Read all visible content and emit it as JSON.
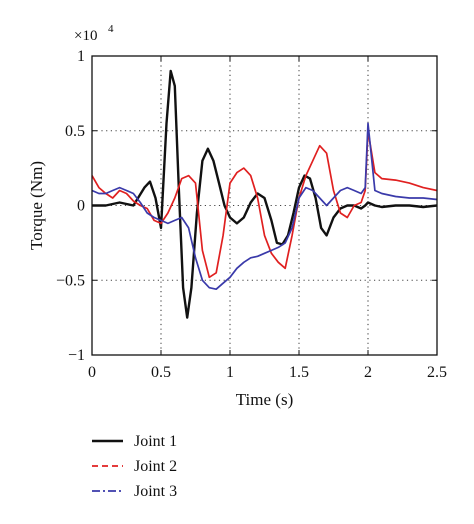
{
  "chart_data": {
    "type": "line",
    "xlabel": "Time (s)",
    "ylabel": "Torque (Nm)",
    "y_multiplier": {
      "base": "×10",
      "exponent": "4"
    },
    "xlim": [
      0,
      2.5
    ],
    "ylim": [
      -1,
      1
    ],
    "x_ticks": [
      0,
      0.5,
      1,
      1.5,
      2,
      2.5
    ],
    "x_tick_labels": [
      "0",
      "0.5",
      "1",
      "1.5",
      "2",
      "2.5"
    ],
    "y_ticks": [
      1,
      0.5,
      0,
      -0.5,
      -1
    ],
    "y_tick_labels": [
      "1",
      "0.5",
      "0",
      "−0.5",
      "−1"
    ],
    "grid": true,
    "legend_position": "bottom-left-outside",
    "series": [
      {
        "name": "Joint 1",
        "color": "#111111",
        "dash": "solid",
        "x": [
          0,
          0.1,
          0.2,
          0.3,
          0.38,
          0.42,
          0.46,
          0.5,
          0.54,
          0.57,
          0.6,
          0.63,
          0.66,
          0.69,
          0.72,
          0.76,
          0.8,
          0.84,
          0.88,
          0.92,
          0.96,
          1.0,
          1.05,
          1.1,
          1.15,
          1.2,
          1.25,
          1.3,
          1.34,
          1.38,
          1.42,
          1.46,
          1.5,
          1.54,
          1.58,
          1.62,
          1.66,
          1.7,
          1.75,
          1.8,
          1.85,
          1.9,
          1.95,
          1.98,
          2.0,
          2.05,
          2.1,
          2.2,
          2.3,
          2.4,
          2.5
        ],
        "y": [
          0.0,
          0.0,
          0.02,
          0.0,
          0.12,
          0.16,
          0.05,
          -0.15,
          0.55,
          0.9,
          0.8,
          0.1,
          -0.55,
          -0.75,
          -0.55,
          -0.05,
          0.3,
          0.38,
          0.3,
          0.15,
          0.0,
          -0.08,
          -0.12,
          -0.08,
          0.02,
          0.08,
          0.05,
          -0.1,
          -0.25,
          -0.26,
          -0.2,
          -0.05,
          0.12,
          0.2,
          0.18,
          0.05,
          -0.15,
          -0.2,
          -0.08,
          -0.02,
          0.0,
          0.0,
          -0.02,
          0.0,
          0.02,
          0.0,
          -0.01,
          0.0,
          0.0,
          -0.01,
          0.0
        ]
      },
      {
        "name": "Joint 2",
        "color": "#e02020",
        "dash": "6 4",
        "x": [
          0,
          0.05,
          0.1,
          0.15,
          0.2,
          0.25,
          0.3,
          0.35,
          0.4,
          0.45,
          0.5,
          0.55,
          0.6,
          0.65,
          0.7,
          0.75,
          0.8,
          0.85,
          0.9,
          0.95,
          1.0,
          1.05,
          1.1,
          1.15,
          1.2,
          1.25,
          1.3,
          1.35,
          1.4,
          1.45,
          1.5,
          1.55,
          1.6,
          1.65,
          1.7,
          1.75,
          1.8,
          1.85,
          1.9,
          1.95,
          1.98,
          2.0,
          2.05,
          2.1,
          2.2,
          2.3,
          2.4,
          2.5
        ],
        "y": [
          0.2,
          0.12,
          0.08,
          0.05,
          0.1,
          0.08,
          0.03,
          0.0,
          -0.02,
          -0.1,
          -0.12,
          -0.05,
          0.05,
          0.18,
          0.2,
          0.15,
          -0.3,
          -0.48,
          -0.45,
          -0.2,
          0.15,
          0.22,
          0.25,
          0.2,
          0.05,
          -0.2,
          -0.32,
          -0.38,
          -0.42,
          -0.2,
          0.05,
          0.2,
          0.3,
          0.4,
          0.35,
          0.1,
          -0.05,
          -0.08,
          0.0,
          0.02,
          0.1,
          0.5,
          0.22,
          0.18,
          0.17,
          0.15,
          0.12,
          0.1
        ]
      },
      {
        "name": "Joint 3",
        "color": "#3a3aaa",
        "dash": "8 3 2 3",
        "x": [
          0,
          0.05,
          0.1,
          0.15,
          0.2,
          0.25,
          0.3,
          0.35,
          0.4,
          0.45,
          0.5,
          0.55,
          0.6,
          0.65,
          0.7,
          0.75,
          0.8,
          0.85,
          0.9,
          0.95,
          1.0,
          1.05,
          1.1,
          1.15,
          1.2,
          1.25,
          1.3,
          1.35,
          1.4,
          1.45,
          1.5,
          1.55,
          1.6,
          1.65,
          1.7,
          1.75,
          1.8,
          1.85,
          1.9,
          1.95,
          1.98,
          2.0,
          2.05,
          2.1,
          2.2,
          2.3,
          2.4,
          2.5
        ],
        "y": [
          0.1,
          0.08,
          0.08,
          0.1,
          0.12,
          0.1,
          0.08,
          0.02,
          -0.05,
          -0.08,
          -0.1,
          -0.12,
          -0.1,
          -0.08,
          -0.15,
          -0.35,
          -0.5,
          -0.55,
          -0.56,
          -0.52,
          -0.48,
          -0.42,
          -0.38,
          -0.35,
          -0.34,
          -0.32,
          -0.3,
          -0.28,
          -0.25,
          -0.15,
          0.05,
          0.12,
          0.1,
          0.05,
          0.0,
          0.05,
          0.1,
          0.12,
          0.1,
          0.08,
          0.12,
          0.55,
          0.1,
          0.08,
          0.06,
          0.05,
          0.05,
          0.04
        ]
      }
    ]
  }
}
